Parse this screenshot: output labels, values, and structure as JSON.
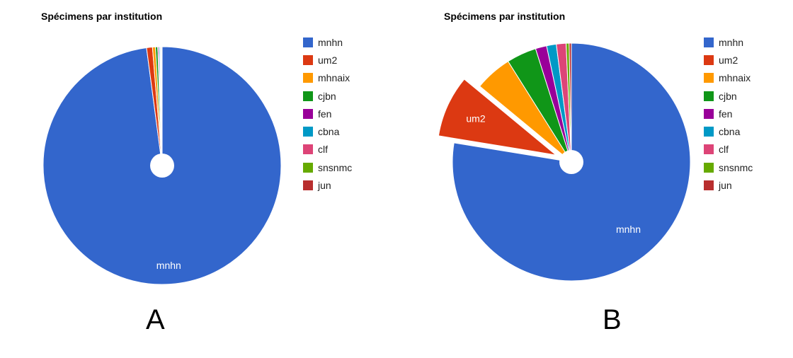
{
  "colors": {
    "mnhn": "#3366cc",
    "um2": "#dc3912",
    "mhnaix": "#ff9900",
    "cjbn": "#109618",
    "fen": "#990099",
    "cbna": "#0099c6",
    "clf": "#dd4477",
    "snsnmc": "#66aa00",
    "jun": "#b82e2e"
  },
  "panels": [
    {
      "letter": "A",
      "title": "Spécimens par institution"
    },
    {
      "letter": "B",
      "title": "Spécimens par institution"
    }
  ],
  "chart_data": [
    {
      "type": "pie",
      "title": "Spécimens par institution",
      "legend": "right",
      "categories": [
        "mnhn",
        "um2",
        "mhnaix",
        "cjbn",
        "fen",
        "cbna",
        "clf",
        "snsnmc",
        "jun"
      ],
      "values": [
        97.9,
        0.8,
        0.4,
        0.3,
        0.15,
        0.15,
        0.1,
        0.1,
        0.1
      ],
      "slice_labels": [
        "mnhn",
        "",
        "",
        "",
        "",
        "",
        "",
        "",
        ""
      ]
    },
    {
      "type": "pie",
      "title": "Spécimens par institution",
      "legend": "right",
      "categories": [
        "mnhn",
        "um2",
        "mhnaix",
        "cjbn",
        "fen",
        "cbna",
        "clf",
        "snsnmc",
        "jun"
      ],
      "values": [
        76.5,
        8.3,
        5.0,
        4.0,
        1.5,
        1.3,
        1.3,
        0.4,
        0.3
      ],
      "slice_labels": [
        "mnhn",
        "um2",
        "",
        "",
        "",
        "",
        "",
        "",
        ""
      ],
      "exploded": [
        "um2"
      ]
    }
  ]
}
